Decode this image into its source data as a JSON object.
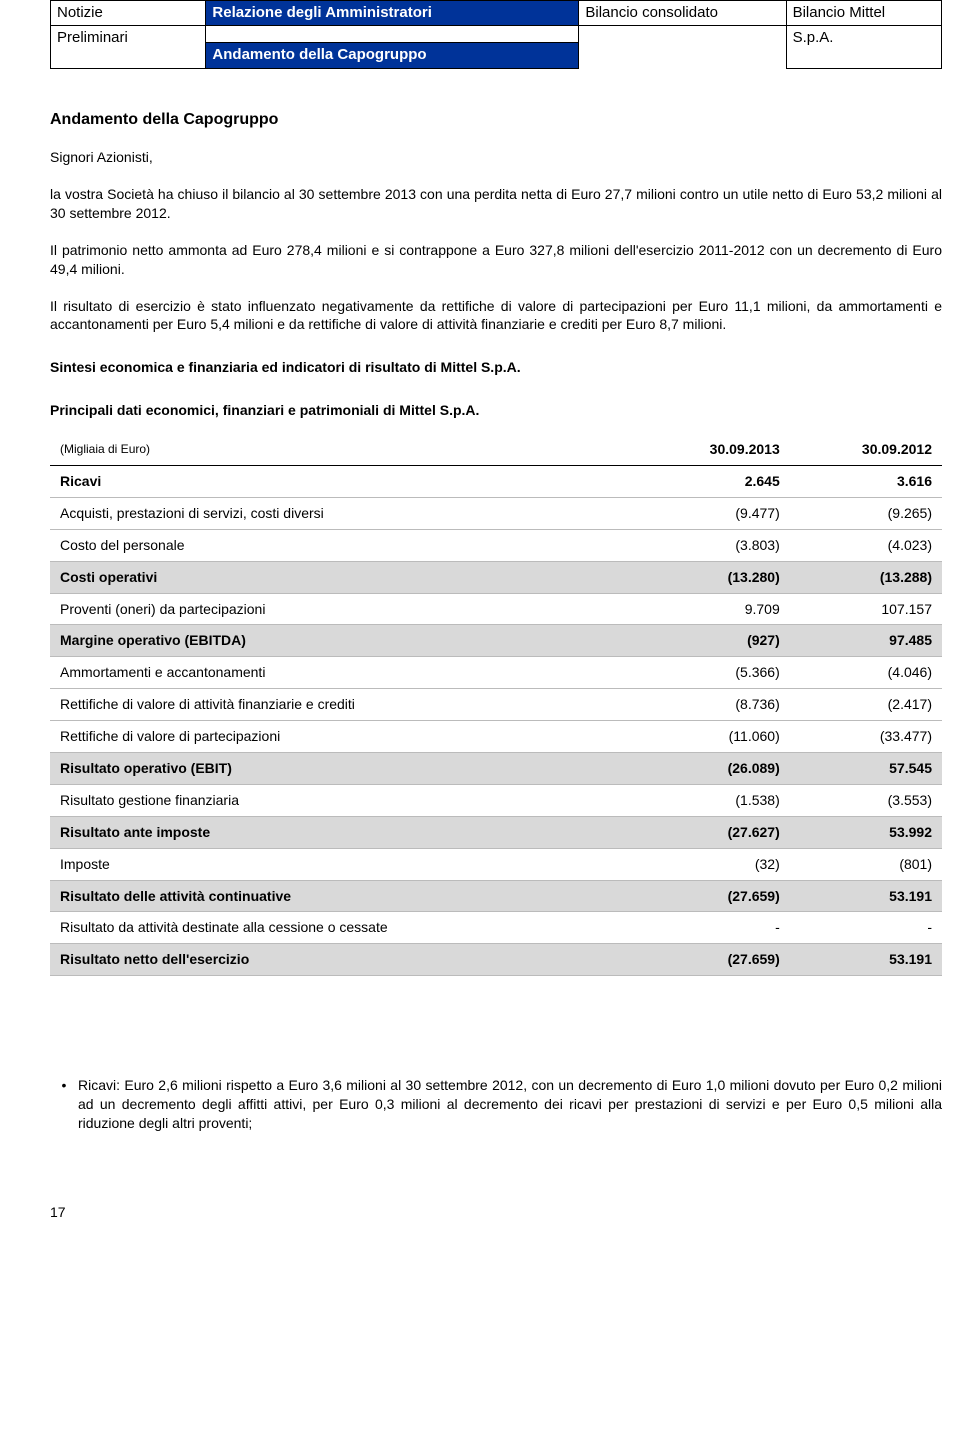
{
  "nav": {
    "r1c1": "Notizie",
    "r1c2": "Relazione degli Amministratori",
    "r1c3": "Bilancio consolidato",
    "r1c4": "Bilancio Mittel",
    "r2c1": "Preliminari",
    "r2c2": "Andamento della Capogruppo",
    "r2c4": "S.p.A."
  },
  "title": "Andamento della Capogruppo",
  "salutation": "Signori Azionisti,",
  "p1": "la vostra Società ha chiuso il bilancio al 30 settembre 2013 con una perdita netta di Euro 27,7 milioni contro un utile netto di Euro 53,2 milioni al 30 settembre 2012.",
  "p2": "Il patrimonio netto ammonta ad Euro 278,4 milioni e si contrappone a Euro 327,8 milioni dell'esercizio 2011-2012 con un decremento di Euro 49,4 milioni.",
  "p3": "Il risultato di esercizio è stato influenzato negativamente da rettifiche di valore di partecipazioni per Euro 11,1 milioni, da ammortamenti e accantonamenti per Euro 5,4 milioni e da rettifiche di valore di attività finanziarie e crediti per Euro 8,7 milioni.",
  "h1": "Sintesi economica e finanziaria ed indicatori di risultato di Mittel S.p.A.",
  "h2": "Principali dati economici, finanziari e patrimoniali di Mittel S.p.A.",
  "table": {
    "unit_label": "(Migliaia di Euro)",
    "col1": "30.09.2013",
    "col2": "30.09.2012",
    "rows": [
      {
        "label": "Ricavi",
        "v1": "2.645",
        "v2": "3.616",
        "bold": true
      },
      {
        "label": "Acquisti, prestazioni di servizi, costi diversi",
        "v1": "(9.477)",
        "v2": "(9.265)",
        "bold": false
      },
      {
        "label": "Costo del personale",
        "v1": "(3.803)",
        "v2": "(4.023)",
        "bold": false
      },
      {
        "label": "Costi operativi",
        "v1": "(13.280)",
        "v2": "(13.288)",
        "bold": true,
        "shade": true
      },
      {
        "label": "Proventi (oneri) da partecipazioni",
        "v1": "9.709",
        "v2": "107.157",
        "bold": false
      },
      {
        "label": "Margine operativo (EBITDA)",
        "v1": "(927)",
        "v2": "97.485",
        "bold": true,
        "shade": true
      },
      {
        "label": "Ammortamenti e accantonamenti",
        "v1": "(5.366)",
        "v2": "(4.046)",
        "bold": false
      },
      {
        "label": "Rettifiche di valore di attività finanziarie e crediti",
        "v1": "(8.736)",
        "v2": "(2.417)",
        "bold": false
      },
      {
        "label": "Rettifiche di valore di partecipazioni",
        "v1": "(11.060)",
        "v2": "(33.477)",
        "bold": false
      },
      {
        "label": "Risultato operativo (EBIT)",
        "v1": "(26.089)",
        "v2": "57.545",
        "bold": true,
        "shade": true
      },
      {
        "label": "Risultato gestione finanziaria",
        "v1": "(1.538)",
        "v2": "(3.553)",
        "bold": false
      },
      {
        "label": "Risultato ante imposte",
        "v1": "(27.627)",
        "v2": "53.992",
        "bold": true,
        "shade": true
      },
      {
        "label": "Imposte",
        "v1": "(32)",
        "v2": "(801)",
        "bold": false
      },
      {
        "label": "Risultato delle attività continuative",
        "v1": "(27.659)",
        "v2": "53.191",
        "bold": true,
        "shade": true
      },
      {
        "label": "Risultato da attività destinate alla cessione o cessate",
        "v1": "-",
        "v2": "-",
        "bold": false
      },
      {
        "label": "Risultato netto dell'esercizio",
        "v1": "(27.659)",
        "v2": "53.191",
        "bold": true,
        "shade": true
      }
    ]
  },
  "bullet": "Ricavi: Euro 2,6 milioni rispetto a Euro 3,6 milioni al 30 settembre 2012, con un decremento di Euro 1,0 milioni dovuto per Euro 0,2 milioni ad un decremento degli affitti attivi, per Euro 0,3 milioni al decremento dei ricavi per prestazioni di servizi e per Euro 0,5 milioni alla riduzione degli altri proventi;",
  "page_num": "17"
}
